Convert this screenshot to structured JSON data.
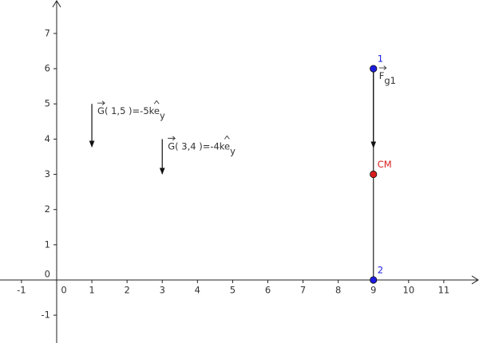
{
  "chart_data": {
    "type": "scatter",
    "xlim": [
      -1.61,
      12
    ],
    "ylim": [
      -1.79,
      7.95
    ],
    "xticks": [
      -1,
      0,
      1,
      2,
      3,
      4,
      5,
      6,
      7,
      8,
      9,
      10,
      11
    ],
    "yticks": [
      -1,
      0,
      1,
      2,
      3,
      4,
      5,
      6,
      7
    ],
    "points": [
      {
        "label": "1",
        "x": 9,
        "y": 6,
        "color": "#1c1ce0"
      },
      {
        "label": "CM",
        "x": 9,
        "y": 3,
        "color": "#d81c1c"
      },
      {
        "label": "2",
        "x": 9,
        "y": 0,
        "color": "#1c1ce0"
      }
    ],
    "segments": [
      {
        "x1": 9,
        "y1": 6,
        "x2": 9,
        "y2": 0
      }
    ],
    "vectors": [
      {
        "main": "G( 1,5 )=-5ke",
        "sub": "y",
        "x": 1,
        "y": 5,
        "x2": 1,
        "y2": 3.78
      },
      {
        "main": "G( 3,4 )=-4ke",
        "sub": "y",
        "x": 3,
        "y": 4,
        "x2": 3,
        "y2": 3.01
      },
      {
        "main": "F",
        "sub": "g1",
        "x": 9,
        "y": 6,
        "x2": 9,
        "y2": 3.76
      }
    ]
  }
}
